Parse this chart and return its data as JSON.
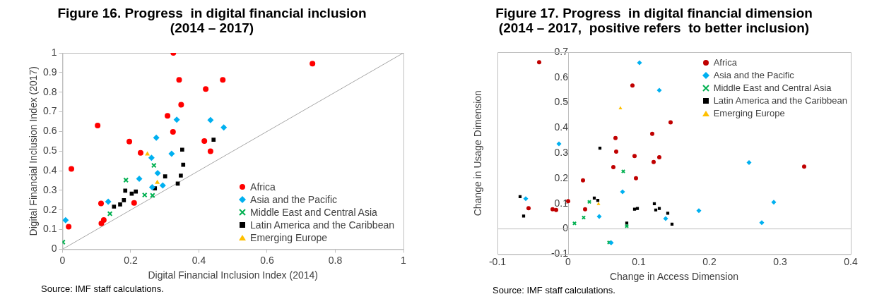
{
  "chart_data": [
    {
      "type": "scatter",
      "title": "Figure 16. Progress  in digital financial inclusion\n(2014 – 2017)",
      "xlabel": "Digital Financial Inclusion Index (2014)",
      "ylabel": "Digital Financial Inclusion Index (2017)",
      "xlim": [
        0,
        1
      ],
      "ylim": [
        0,
        1
      ],
      "xticks": [
        0,
        0.2,
        0.4,
        0.6,
        0.8,
        1
      ],
      "yticks": [
        0,
        0.1,
        0.2,
        0.3,
        0.4,
        0.5,
        0.6,
        0.7,
        0.8,
        0.9,
        1
      ],
      "legend": "bottom right",
      "annotations": [
        "Source: IMF staff calculations."
      ],
      "series": [
        {
          "name": "Africa",
          "color": "#ff0000",
          "marker": "circle",
          "x": [
            0.325,
            0.342,
            0.348,
            0.308,
            0.324,
            0.103,
            0.196,
            0.229,
            0.026,
            0.113,
            0.21,
            0.121,
            0.114,
            0.018,
            0.733,
            0.47,
            0.42,
            0.416,
            0.434
          ],
          "values": [
            1.0,
            0.863,
            0.736,
            0.679,
            0.598,
            0.63,
            0.548,
            0.491,
            0.409,
            0.233,
            0.236,
            0.149,
            0.132,
            0.115,
            0.945,
            0.863,
            0.816,
            0.551,
            0.499
          ]
        },
        {
          "name": "Asia and the Pacific",
          "color": "#00b0f0",
          "marker": "diamond",
          "x": [
            0.335,
            0.275,
            0.32,
            0.261,
            0.279,
            0.225,
            0.294,
            0.263,
            0.134,
            0.009,
            0.434,
            0.473
          ],
          "values": [
            0.66,
            0.568,
            0.486,
            0.466,
            0.388,
            0.359,
            0.325,
            0.316,
            0.242,
            0.148,
            0.658,
            0.62
          ]
        },
        {
          "name": "Middle East and Central Asia",
          "color": "#00b050",
          "marker": "cross",
          "x": [
            0.268,
            0.186,
            0.241,
            0.264,
            0.139,
            0.001
          ],
          "values": [
            0.427,
            0.352,
            0.276,
            0.274,
            0.181,
            0.036
          ]
        },
        {
          "name": "Latin America and the Caribbean",
          "color": "#000000",
          "marker": "square",
          "x": [
            0.351,
            0.354,
            0.301,
            0.347,
            0.338,
            0.271,
            0.184,
            0.215,
            0.203,
            0.18,
            0.169,
            0.151,
            0.443
          ],
          "values": [
            0.507,
            0.43,
            0.371,
            0.375,
            0.334,
            0.31,
            0.298,
            0.294,
            0.283,
            0.25,
            0.228,
            0.217,
            0.558
          ]
        },
        {
          "name": "Emerging Europe",
          "color": "#ffc000",
          "marker": "triangle",
          "x": [
            0.249,
            0.278
          ],
          "values": [
            0.485,
            0.34
          ]
        },
        {
          "type": "line",
          "color": "#a6a6a6",
          "marker": "none",
          "x": [
            0,
            1
          ],
          "values": [
            0,
            1
          ]
        }
      ]
    },
    {
      "type": "scatter",
      "title": "Figure 17. Progress  in digital financial dimension\n(2014 – 2017,  positive refers  to better inclusion)",
      "xlabel": "Change in Access Dimension",
      "ylabel": "Change in Usage Dimension",
      "xlim": [
        -0.1,
        0.4
      ],
      "ylim": [
        -0.1,
        0.7
      ],
      "xticks": [
        -0.1,
        0,
        0.1,
        0.2,
        0.3,
        0.4
      ],
      "yticks": [
        -0.1,
        0,
        0.1,
        0.2,
        0.3,
        0.4,
        0.5,
        0.6,
        0.7
      ],
      "legend": "top right",
      "annotations": [
        "Source: IMF staff calculations."
      ],
      "ref_lines": [
        {
          "axis": "y",
          "value": 0,
          "color": "#bfbfbf"
        }
      ],
      "series": [
        {
          "name": "Africa",
          "color": "#c00000",
          "marker": "circle",
          "x": [
            -0.041,
            0.091,
            0.067,
            0.068,
            0.094,
            0.064,
            0.096,
            0.021,
            0.0,
            -0.056,
            -0.022,
            -0.017,
            0.024,
            0.145,
            0.119,
            0.129,
            0.121,
            0.334
          ],
          "values": [
            0.66,
            0.568,
            0.36,
            0.306,
            0.289,
            0.245,
            0.201,
            0.192,
            0.11,
            0.082,
            0.078,
            0.075,
            0.078,
            0.422,
            0.377,
            0.284,
            0.265,
            0.247
          ]
        },
        {
          "name": "Asia and the Pacific",
          "color": "#00b0f0",
          "marker": "diamond",
          "x": [
            0.101,
            -0.013,
            0.077,
            -0.06,
            0.044,
            0.061,
            0.129,
            0.256,
            0.291,
            0.185,
            0.138,
            0.274
          ],
          "values": [
            0.658,
            0.337,
            0.147,
            0.12,
            0.049,
            -0.055,
            0.549,
            0.263,
            0.106,
            0.072,
            0.041,
            0.025
          ]
        },
        {
          "name": "Middle East and Central Asia",
          "color": "#00b050",
          "marker": "cross",
          "x": [
            0.078,
            0.03,
            0.022,
            0.009,
            0.058,
            0.083
          ],
          "values": [
            0.228,
            0.107,
            0.045,
            0.022,
            -0.054,
            0.011
          ]
        },
        {
          "name": "Latin America and the Caribbean",
          "color": "#000000",
          "marker": "square",
          "x": [
            -0.068,
            -0.063,
            0.045,
            0.037,
            0.042,
            0.083,
            0.094,
            0.098,
            0.122,
            0.124,
            0.129,
            0.141,
            0.147
          ],
          "values": [
            0.128,
            0.051,
            0.32,
            0.122,
            0.113,
            0.023,
            0.078,
            0.081,
            0.1,
            0.075,
            0.081,
            0.062,
            0.019
          ]
        },
        {
          "name": "Emerging Europe",
          "color": "#ffc000",
          "marker": "triangle",
          "x": [
            0.074,
            0.043
          ],
          "values": [
            0.478,
            0.099
          ]
        }
      ]
    }
  ]
}
